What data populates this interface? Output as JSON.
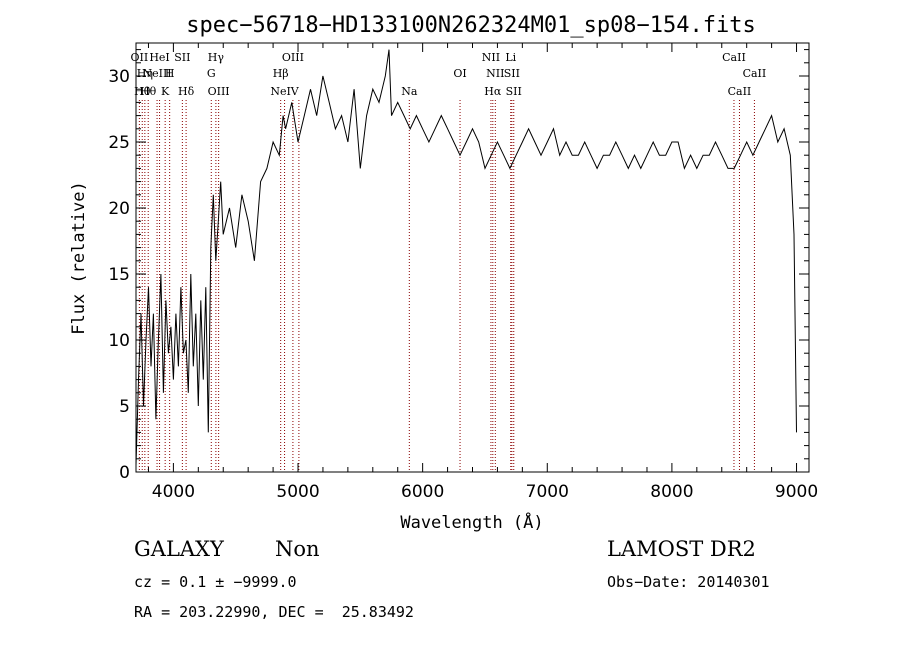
{
  "chart_data": {
    "type": "line",
    "title": "spec−56718−HD133100N262324M01_sp08−154.fits",
    "xlabel": "Wavelength (Å)",
    "ylabel": "Flux (relative)",
    "xlim": [
      3700,
      9100
    ],
    "ylim": [
      0,
      32.5
    ],
    "x_ticks": [
      4000,
      5000,
      6000,
      7000,
      8000,
      9000
    ],
    "y_ticks": [
      0,
      5,
      10,
      15,
      20,
      25,
      30
    ],
    "grid": false,
    "series": [
      {
        "x": [
          3700,
          3720,
          3740,
          3760,
          3780,
          3800,
          3820,
          3840,
          3860,
          3880,
          3900,
          3920,
          3940,
          3960,
          3980,
          4000,
          4020,
          4040,
          4060,
          4080,
          4100,
          4120,
          4140,
          4160,
          4180,
          4200,
          4220,
          4240,
          4260,
          4280,
          4300,
          4320,
          4340,
          4360,
          4380,
          4400,
          4450,
          4500,
          4550,
          4600,
          4650,
          4700,
          4750,
          4800,
          4850,
          4880,
          4900,
          4950,
          5000,
          5050,
          5100,
          5150,
          5200,
          5250,
          5300,
          5350,
          5400,
          5450,
          5500,
          5550,
          5600,
          5650,
          5700,
          5730,
          5750,
          5800,
          5850,
          5900,
          5950,
          6000,
          6050,
          6100,
          6150,
          6200,
          6250,
          6300,
          6350,
          6400,
          6450,
          6500,
          6550,
          6600,
          6650,
          6700,
          6750,
          6800,
          6850,
          6900,
          6950,
          7000,
          7050,
          7100,
          7150,
          7200,
          7250,
          7300,
          7350,
          7400,
          7450,
          7500,
          7550,
          7600,
          7650,
          7700,
          7750,
          7800,
          7850,
          7900,
          7950,
          8000,
          8050,
          8100,
          8150,
          8200,
          8250,
          8300,
          8350,
          8400,
          8450,
          8500,
          8550,
          8600,
          8650,
          8700,
          8750,
          8800,
          8850,
          8900,
          8950,
          8980,
          9000
        ],
        "y": [
          0.5,
          7,
          12,
          5,
          10,
          14,
          8,
          12,
          4,
          10,
          15,
          6,
          13,
          9,
          11,
          7,
          12,
          8,
          14,
          9,
          10,
          6,
          15,
          8,
          12,
          5,
          13,
          7,
          14,
          3,
          17,
          21,
          16,
          19,
          22,
          18,
          20,
          17,
          21,
          19,
          16,
          22,
          23,
          25,
          24,
          27,
          26,
          28,
          25,
          27,
          29,
          27,
          30,
          28,
          26,
          27,
          25,
          29,
          23,
          27,
          29,
          28,
          30,
          32,
          27,
          28,
          27,
          26,
          27,
          26,
          25,
          26,
          27,
          26,
          25,
          24,
          25,
          26,
          25,
          23,
          24,
          25,
          24,
          23,
          24,
          25,
          26,
          25,
          24,
          25,
          26,
          24,
          25,
          24,
          24,
          25,
          24,
          23,
          24,
          24,
          25,
          24,
          23,
          24,
          23,
          24,
          25,
          24,
          24,
          25,
          25,
          23,
          24,
          23,
          24,
          24,
          25,
          24,
          23,
          23,
          24,
          25,
          24,
          25,
          26,
          27,
          25,
          26,
          24,
          18,
          3
        ]
      }
    ],
    "lines": [
      {
        "wl": 3727,
        "label": "OII",
        "row": 0
      },
      {
        "wl": 3750,
        "label": "Hθ",
        "row": 2
      },
      {
        "wl": 3771,
        "label": "Hη",
        "row": 1
      },
      {
        "wl": 3798,
        "label": "Hθ",
        "row": 2
      },
      {
        "wl": 3869,
        "label": "NeIII",
        "row": 1
      },
      {
        "wl": 3889,
        "label": "HeI",
        "row": 0
      },
      {
        "wl": 3934,
        "label": "K",
        "row": 2
      },
      {
        "wl": 3970,
        "label": "H",
        "row": 1
      },
      {
        "wl": 4072,
        "label": "SII",
        "row": 0
      },
      {
        "wl": 4102,
        "label": "Hδ",
        "row": 2
      },
      {
        "wl": 4304,
        "label": "G",
        "row": 1
      },
      {
        "wl": 4341,
        "label": "Hγ",
        "row": 0
      },
      {
        "wl": 4363,
        "label": "OIII",
        "row": 2
      },
      {
        "wl": 4861,
        "label": "Hβ",
        "row": 1
      },
      {
        "wl": 4892,
        "label": "NeIV",
        "row": 2
      },
      {
        "wl": 4959,
        "label": "OIII",
        "row": 0
      },
      {
        "wl": 5007,
        "label": "",
        "row": 0
      },
      {
        "wl": 5893,
        "label": "Na",
        "row": 2
      },
      {
        "wl": 6300,
        "label": "OI",
        "row": 1
      },
      {
        "wl": 6548,
        "label": "NII",
        "row": 0
      },
      {
        "wl": 6563,
        "label": "Hα",
        "row": 2
      },
      {
        "wl": 6583,
        "label": "NII",
        "row": 1
      },
      {
        "wl": 6707,
        "label": "Li",
        "row": 0
      },
      {
        "wl": 6716,
        "label": "SII",
        "row": 1
      },
      {
        "wl": 6731,
        "label": "SII",
        "row": 2
      },
      {
        "wl": 8498,
        "label": "CaII",
        "row": 0
      },
      {
        "wl": 8542,
        "label": "CaII",
        "row": 2
      },
      {
        "wl": 8662,
        "label": "CaII",
        "row": 1
      }
    ]
  },
  "info": {
    "class": "GALAXY",
    "subclass": "Non",
    "survey": "LAMOST DR2",
    "cz": "cz = 0.1 ± −9999.0",
    "obs_date": "Obs−Date: 20140301",
    "coords": "RA = 203.22990, DEC =  25.83492"
  }
}
